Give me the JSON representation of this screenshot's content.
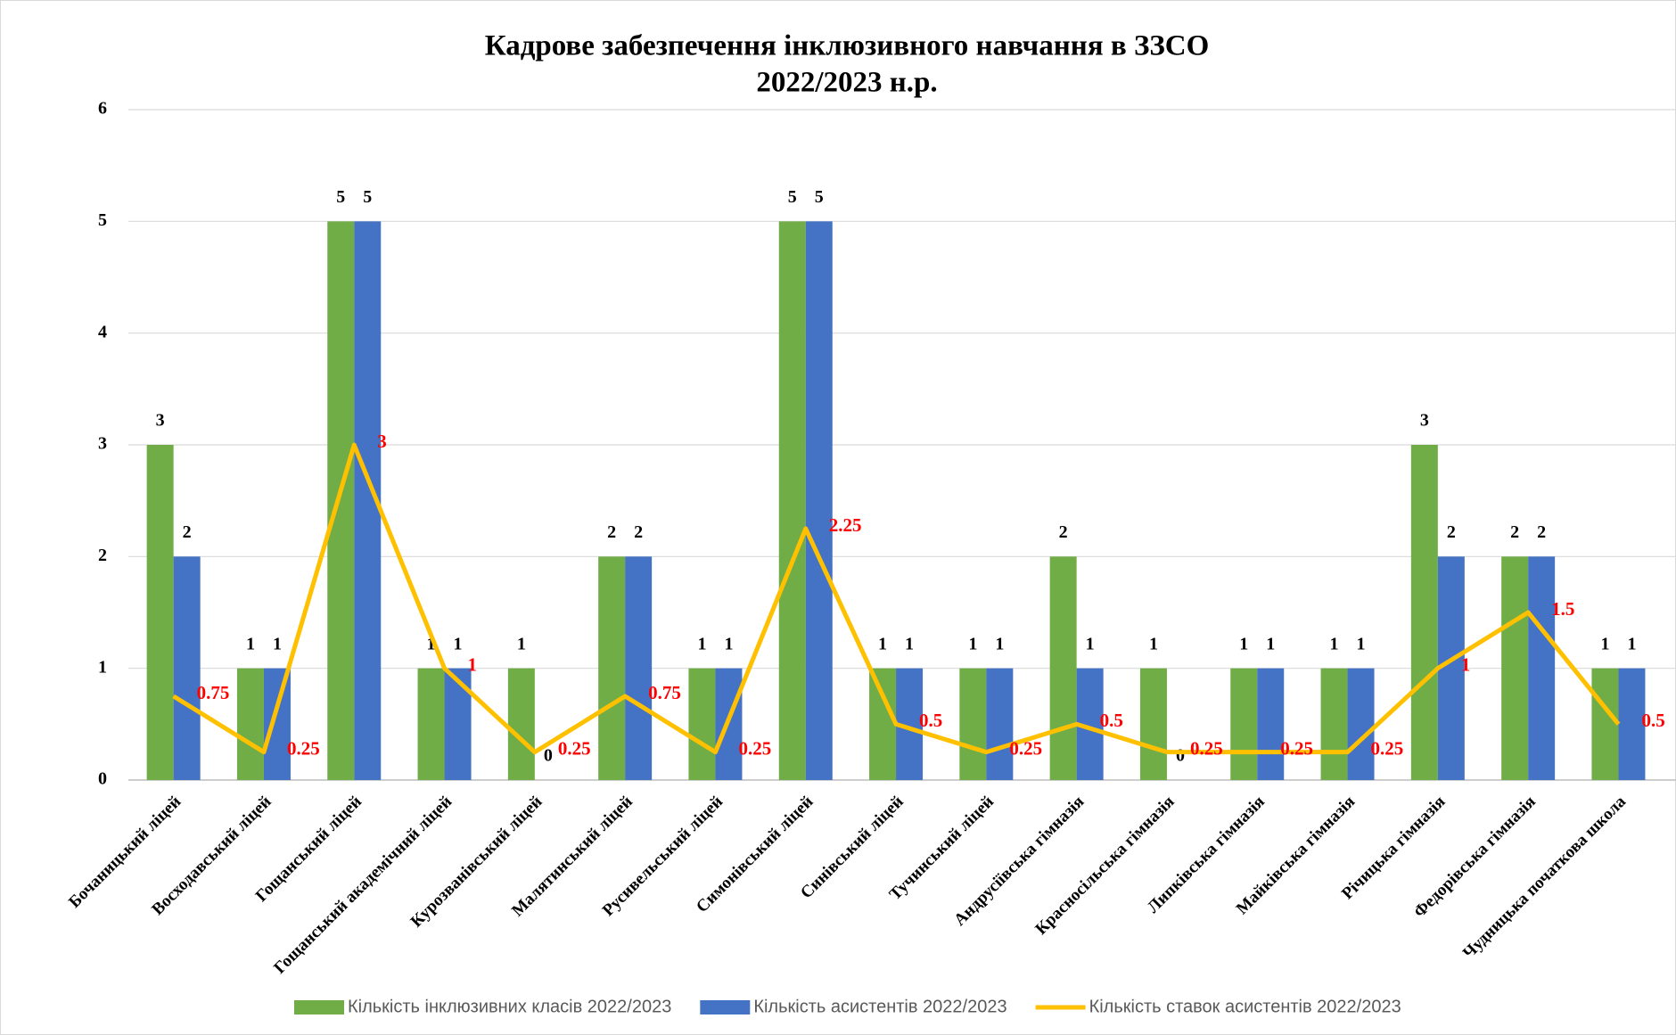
{
  "chart_data": {
    "type": "bar",
    "title": [
      "Кадрове забезпечення інклюзивного навчання в ЗЗСО",
      "2022/2023 н.р."
    ],
    "categories": [
      "Бочаницький ліцей",
      "Восходавський  ліцей",
      "Гощанський ліцей",
      "Гощанський академічний ліцей",
      "Курозванівський ліцей",
      "Малятинський  ліцей",
      "Русивельський  ліцей",
      "Симонівський ліцей",
      "Синівський ліцей",
      "Тучинський ліцей",
      "Андрусіївська гімназія",
      "Красносільська  гімназія",
      "Липківська гімназія",
      "Майківська гімназія",
      "Річицька  гімназія",
      "Федорівська  гімназія",
      "Чудницька  початкова школа"
    ],
    "series": [
      {
        "name": "Кількість інклюзивних класів 2022/2023",
        "type": "bar",
        "color": "#70ad47",
        "values": [
          3,
          1,
          5,
          1,
          1,
          2,
          1,
          5,
          1,
          1,
          2,
          1,
          1,
          1,
          3,
          2,
          1
        ]
      },
      {
        "name": "Кількість асистентів 2022/2023",
        "type": "bar",
        "color": "#4472c4",
        "values": [
          2,
          1,
          5,
          1,
          0,
          2,
          1,
          5,
          1,
          1,
          1,
          0,
          1,
          1,
          2,
          2,
          1
        ]
      },
      {
        "name": "Кількість ставок асистентів 2022/2023",
        "type": "line",
        "color": "#ffc000",
        "values": [
          0.75,
          0.25,
          3,
          1,
          0.25,
          0.75,
          0.25,
          2.25,
          0.5,
          0.25,
          0.5,
          0.25,
          0.25,
          0.25,
          1,
          1.5,
          0.5
        ]
      }
    ],
    "ylim": [
      0,
      6
    ],
    "yticks": [
      0,
      1,
      2,
      3,
      4,
      5,
      6
    ],
    "grid": true,
    "legend": "bottom"
  }
}
